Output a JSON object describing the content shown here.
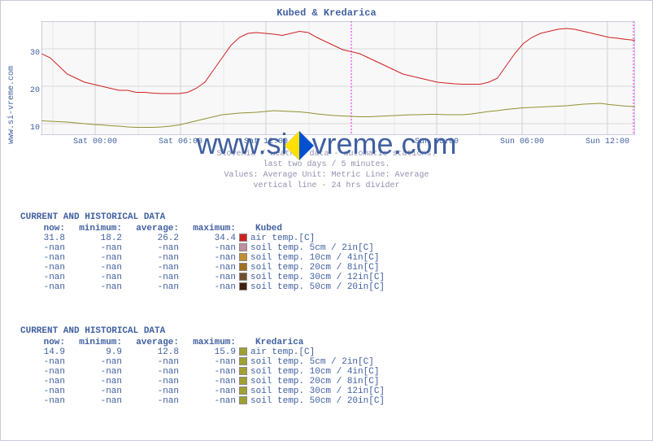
{
  "chart": {
    "title": "Kubed & Kredarica",
    "vlabel": "www.si-vreme.com",
    "watermark": "www.si-vreme.com",
    "y_ticks": [
      {
        "v": "10",
        "pos": 126
      },
      {
        "v": "20",
        "pos": 80
      },
      {
        "v": "30",
        "pos": 34
      }
    ],
    "ylim_min": 8,
    "ylim_max": 36,
    "x_ticks": [
      {
        "label": "Sat 00:00",
        "pos": 66
      },
      {
        "label": "Sat 06:00",
        "pos": 171
      },
      {
        "label": "Sat 12:00",
        "pos": 276
      },
      {
        "label": "Sun 00:00",
        "pos": 486
      },
      {
        "label": "Sun 06:00",
        "pos": 591
      },
      {
        "label": "Sun 12:00",
        "pos": 696
      }
    ],
    "x_minor": [
      14,
      66,
      119,
      171,
      224,
      276,
      329,
      381,
      434,
      486,
      539,
      591,
      644,
      696
    ],
    "vline_pos": 381,
    "series": [
      {
        "color": "#d02020",
        "data": [
          28,
          27,
          25,
          23,
          22,
          21,
          20.5,
          20,
          19.5,
          19,
          19,
          18.5,
          18.5,
          18.3,
          18.2,
          18.2,
          18.2,
          18.5,
          19.5,
          21,
          24,
          27,
          30,
          32,
          33,
          33.2,
          33,
          32.8,
          32.5,
          33,
          33.5,
          33.2,
          32,
          31,
          30,
          29,
          28.5,
          28,
          27,
          26,
          25,
          24,
          23,
          22.5,
          22,
          21.5,
          21,
          20.8,
          20.6,
          20.5,
          20.5,
          20.5,
          21,
          22,
          25,
          28,
          30.5,
          32,
          33,
          33.5,
          34,
          34.2,
          34,
          33.5,
          33,
          32.5,
          32,
          31.8,
          31.5,
          31.3
        ]
      },
      {
        "color": "#909030",
        "data": [
          11.5,
          11.4,
          11.3,
          11.2,
          11,
          10.8,
          10.6,
          10.5,
          10.3,
          10.2,
          10,
          9.9,
          9.9,
          9.9,
          10,
          10.2,
          10.5,
          11,
          11.5,
          12,
          12.5,
          13,
          13.2,
          13.4,
          13.5,
          13.6,
          13.8,
          14,
          13.9,
          13.8,
          13.7,
          13.5,
          13.2,
          13,
          12.8,
          12.7,
          12.6,
          12.5,
          12.5,
          12.6,
          12.7,
          12.8,
          12.9,
          13,
          13,
          13.1,
          13.1,
          13,
          13,
          13,
          13.2,
          13.5,
          13.8,
          14,
          14.3,
          14.5,
          14.7,
          14.8,
          14.9,
          15,
          15.1,
          15.2,
          15.4,
          15.6,
          15.7,
          15.8,
          15.5,
          15.3,
          15.1,
          15
        ]
      }
    ],
    "footer": [
      "Slovenia / weather data - automatic stations.",
      "last two days / 5 minutes.",
      "Values: Average Unit: Metric Line: Average",
      "vertical line - 24 hrs  divider"
    ]
  },
  "tables": [
    {
      "header": "CURRENT AND HISTORICAL DATA",
      "cols": {
        "now": "now:",
        "min": "minimum:",
        "avg": "average:",
        "max": "maximum:",
        "loc": "Kubed"
      },
      "rows": [
        {
          "now": "31.8",
          "min": "18.2",
          "avg": "26.2",
          "max": "34.4",
          "color": "#d02020",
          "label": "air temp.[C]"
        },
        {
          "now": "-nan",
          "min": "-nan",
          "avg": "-nan",
          "max": "-nan",
          "color": "#c090a0",
          "label": "soil temp. 5cm / 2in[C]"
        },
        {
          "now": "-nan",
          "min": "-nan",
          "avg": "-nan",
          "max": "-nan",
          "color": "#c09030",
          "label": "soil temp. 10cm / 4in[C]"
        },
        {
          "now": "-nan",
          "min": "-nan",
          "avg": "-nan",
          "max": "-nan",
          "color": "#a07020",
          "label": "soil temp. 20cm / 8in[C]"
        },
        {
          "now": "-nan",
          "min": "-nan",
          "avg": "-nan",
          "max": "-nan",
          "color": "#705030",
          "label": "soil temp. 30cm / 12in[C]"
        },
        {
          "now": "-nan",
          "min": "-nan",
          "avg": "-nan",
          "max": "-nan",
          "color": "#402010",
          "label": "soil temp. 50cm / 20in[C]"
        }
      ]
    },
    {
      "header": "CURRENT AND HISTORICAL DATA",
      "cols": {
        "now": "now:",
        "min": "minimum:",
        "avg": "average:",
        "max": "maximum:",
        "loc": "Kredarica"
      },
      "rows": [
        {
          "now": "14.9",
          "min": "9.9",
          "avg": "12.8",
          "max": "15.9",
          "color": "#a0a030",
          "label": "air temp.[C]"
        },
        {
          "now": "-nan",
          "min": "-nan",
          "avg": "-nan",
          "max": "-nan",
          "color": "#a0a030",
          "label": "soil temp. 5cm / 2in[C]"
        },
        {
          "now": "-nan",
          "min": "-nan",
          "avg": "-nan",
          "max": "-nan",
          "color": "#a0a030",
          "label": "soil temp. 10cm / 4in[C]"
        },
        {
          "now": "-nan",
          "min": "-nan",
          "avg": "-nan",
          "max": "-nan",
          "color": "#a0a030",
          "label": "soil temp. 20cm / 8in[C]"
        },
        {
          "now": "-nan",
          "min": "-nan",
          "avg": "-nan",
          "max": "-nan",
          "color": "#a0a030",
          "label": "soil temp. 30cm / 12in[C]"
        },
        {
          "now": "-nan",
          "min": "-nan",
          "avg": "-nan",
          "max": "-nan",
          "color": "#a0a030",
          "label": "soil temp. 50cm / 20in[C]"
        }
      ]
    }
  ]
}
